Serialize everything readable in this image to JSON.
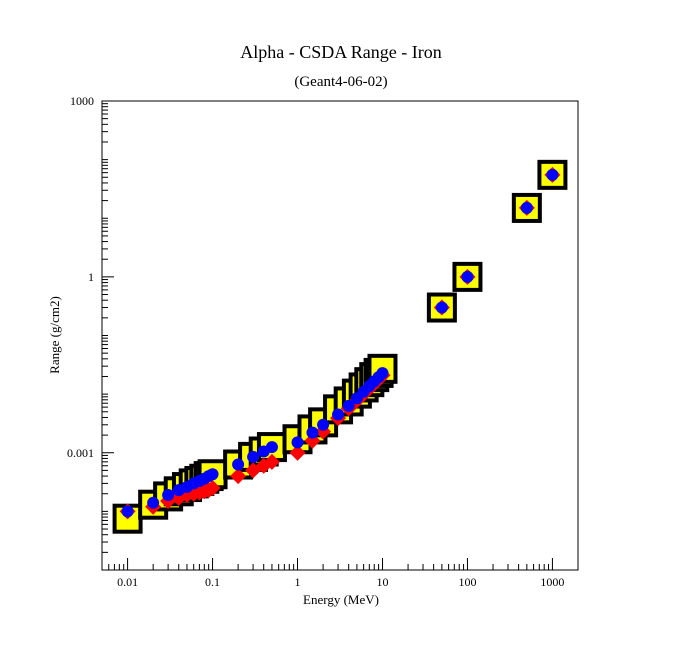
{
  "chart_data": {
    "type": "scatter",
    "title": "Alpha - CSDA Range - Iron",
    "subtitle": "(Geant4-06-02)",
    "xlabel": "Energy (MeV)",
    "ylabel": "Range (g/cm2)",
    "xscale": "log",
    "yscale": "log",
    "xlim": [
      0.005,
      2000
    ],
    "ylim": [
      1e-05,
      1000
    ],
    "x_tick_labels": [
      "0.01",
      "0.1",
      "1",
      "10",
      "100",
      "1000"
    ],
    "y_tick_labels": [
      "0.001",
      "1",
      "1000"
    ],
    "grid": false,
    "legend": "none",
    "colors": {
      "reference": "#000000",
      "reference_fill": "#ffff00",
      "series_red": "#ff0000",
      "series_blue": "#0000ff"
    },
    "x": [
      0.01,
      0.02,
      0.03,
      0.04,
      0.05,
      0.06,
      0.07,
      0.08,
      0.09,
      0.1,
      0.2,
      0.3,
      0.4,
      0.5,
      1,
      1.5,
      2,
      3,
      4,
      5,
      6,
      7,
      8,
      9,
      10,
      50,
      100,
      500,
      1000
    ],
    "series": [
      {
        "marker": "square",
        "values": [
          7.5e-05,
          0.00013,
          0.00018,
          0.00022,
          0.00026,
          0.0003,
          0.00033,
          0.00036,
          0.0004,
          0.00043,
          0.00063,
          0.00085,
          0.00105,
          0.00125,
          0.0017,
          0.0025,
          0.0033,
          0.0055,
          0.0075,
          0.0102,
          0.013,
          0.016,
          0.0195,
          0.023,
          0.027,
          0.3,
          1.0,
          15,
          55
        ]
      },
      {
        "marker": "diamond",
        "values": [
          0.0001,
          0.00012,
          0.00015,
          0.00017,
          0.00019,
          0.0002,
          0.00021,
          0.00022,
          0.00023,
          0.00025,
          0.0004,
          0.0005,
          0.0006,
          0.0007,
          0.001,
          0.0016,
          0.0023,
          0.0039,
          0.0057,
          0.0078,
          0.01,
          0.0125,
          0.015,
          0.0178,
          0.021,
          0.3,
          1.0,
          15,
          55
        ]
      },
      {
        "marker": "circle",
        "values": [
          0.0001,
          0.00014,
          0.00019,
          0.00023,
          0.00026,
          0.0003,
          0.00033,
          0.00036,
          0.0004,
          0.00043,
          0.00063,
          0.00085,
          0.00105,
          0.00125,
          0.0015,
          0.0022,
          0.003,
          0.0045,
          0.0063,
          0.0085,
          0.011,
          0.0137,
          0.0165,
          0.0195,
          0.0228,
          0.3,
          1.0,
          15,
          55
        ]
      }
    ]
  }
}
